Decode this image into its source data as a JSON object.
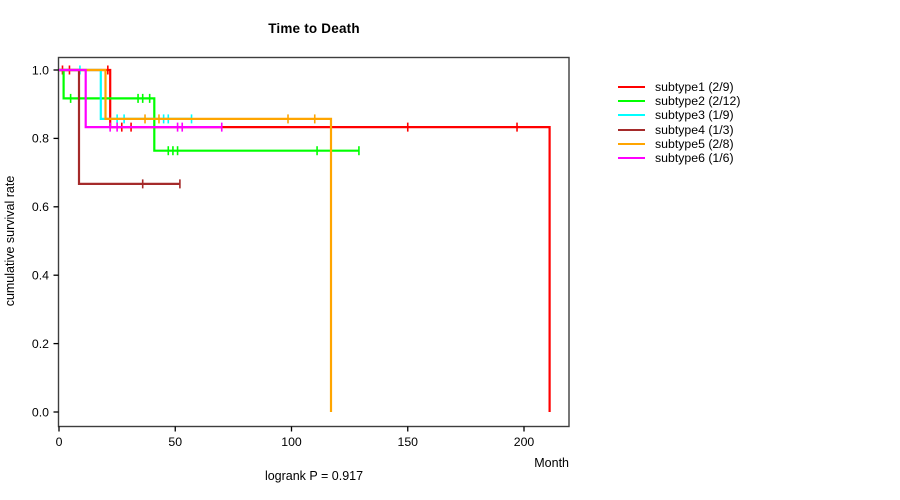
{
  "page": {
    "title": "Time to Death",
    "x_axis_label": "Month",
    "y_axis_label": "cumulative survival rate",
    "annotation": "logrank P = 0.917"
  },
  "colors": {
    "background": "#ffffff",
    "box": "#3d3d3d",
    "axis": "#000000",
    "text": "#000000"
  },
  "chart_data": {
    "type": "line",
    "subtype": "kaplan-meier-step-curves",
    "title": "Time to Death",
    "xlabel": "Month",
    "ylabel": "cumulative survival rate",
    "annotation": "logrank P = 0.917",
    "xlim": [
      0,
      219
    ],
    "ylim": [
      0.0,
      1.0
    ],
    "xticks": {
      "values": [
        0,
        50,
        100,
        150,
        200
      ],
      "labels": [
        "0",
        "50",
        "100",
        "150",
        "200"
      ]
    },
    "yticks": {
      "values": [
        0.0,
        0.2,
        0.4,
        0.6,
        0.8,
        1.0
      ],
      "labels": [
        "0.0",
        "0.2",
        "0.4",
        "0.6",
        "0.8",
        "1.0"
      ]
    },
    "grid": false,
    "legend_position": "right-outside",
    "series": [
      {
        "name": "subtype1 (2/9)",
        "color": "#FF0000",
        "steps": [
          [
            0,
            1.0
          ],
          [
            22,
            1.0
          ],
          [
            22,
            0.833
          ],
          [
            211,
            0.833
          ],
          [
            211,
            0.0
          ]
        ],
        "censors": [
          [
            1.5,
            1.0
          ],
          [
            4.5,
            1.0
          ],
          [
            21,
            1.0
          ],
          [
            27,
            0.833
          ],
          [
            31,
            0.833
          ],
          [
            150,
            0.833
          ],
          [
            197,
            0.833
          ]
        ]
      },
      {
        "name": "subtype2 (2/12)",
        "color": "#00FF00",
        "steps": [
          [
            0,
            1.0
          ],
          [
            2,
            1.0
          ],
          [
            2,
            0.917
          ],
          [
            41,
            0.917
          ],
          [
            41,
            0.764
          ],
          [
            129,
            0.764
          ]
        ],
        "censors": [
          [
            5,
            0.917
          ],
          [
            34,
            0.917
          ],
          [
            36,
            0.917
          ],
          [
            39,
            0.917
          ],
          [
            47,
            0.764
          ],
          [
            49,
            0.764
          ],
          [
            51,
            0.764
          ],
          [
            111,
            0.764
          ],
          [
            129,
            0.764
          ]
        ]
      },
      {
        "name": "subtype3 (1/9)",
        "color": "#00FFFF",
        "steps": [
          [
            0,
            1.0
          ],
          [
            18,
            1.0
          ],
          [
            18,
            0.857
          ],
          [
            57,
            0.857
          ]
        ],
        "censors": [
          [
            9,
            1.0
          ],
          [
            25,
            0.857
          ],
          [
            28,
            0.857
          ],
          [
            45,
            0.857
          ],
          [
            47,
            0.857
          ],
          [
            57,
            0.857
          ]
        ]
      },
      {
        "name": "subtype4 (1/3)",
        "color": "#A52A2A",
        "steps": [
          [
            0,
            1.0
          ],
          [
            8.6,
            1.0
          ],
          [
            8.6,
            0.667
          ],
          [
            52,
            0.667
          ]
        ],
        "censors": [
          [
            36,
            0.667
          ],
          [
            52,
            0.667
          ]
        ]
      },
      {
        "name": "subtype5 (2/8)",
        "color": "#FFA500",
        "steps": [
          [
            0,
            1.0
          ],
          [
            20,
            1.0
          ],
          [
            20,
            0.857
          ],
          [
            117,
            0.857
          ],
          [
            117,
            0.0
          ]
        ],
        "censors": [
          [
            37,
            0.857
          ],
          [
            43,
            0.857
          ],
          [
            98.5,
            0.857
          ],
          [
            110,
            0.857
          ]
        ]
      },
      {
        "name": "subtype6 (1/6)",
        "color": "#FF00FF",
        "steps": [
          [
            0,
            1.0
          ],
          [
            11.5,
            1.0
          ],
          [
            11.5,
            0.833
          ],
          [
            70,
            0.833
          ]
        ],
        "censors": [
          [
            22,
            0.833
          ],
          [
            25,
            0.833
          ],
          [
            51,
            0.833
          ],
          [
            53,
            0.833
          ],
          [
            70,
            0.833
          ]
        ]
      }
    ]
  }
}
